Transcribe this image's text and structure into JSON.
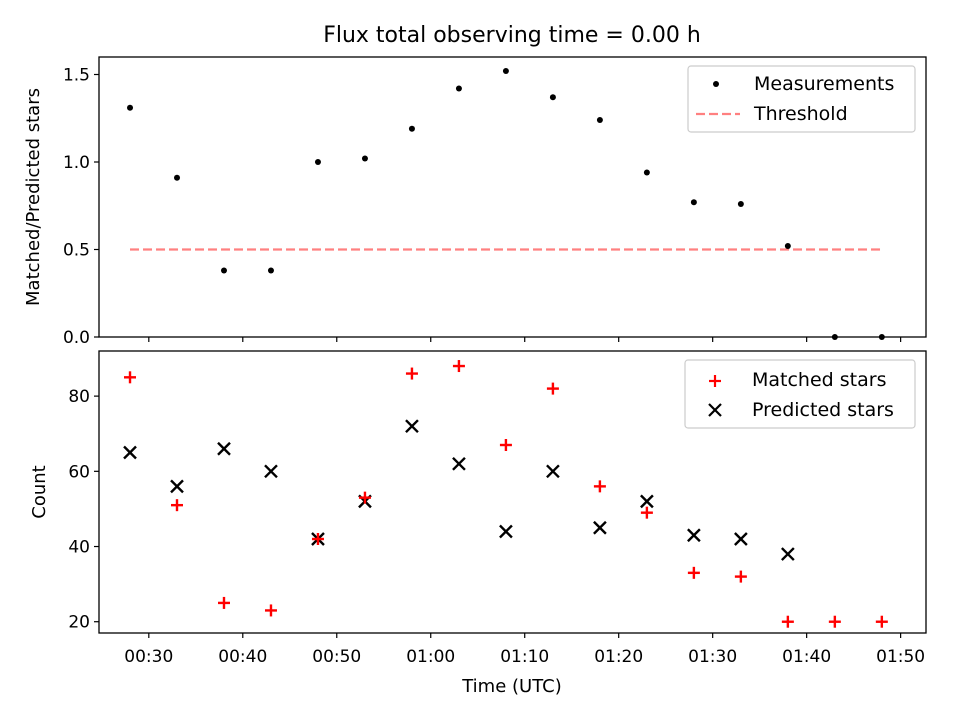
{
  "chart_data": [
    {
      "type": "scatter",
      "title": "Flux total observing time = 0.00 h",
      "xlabel": "",
      "ylabel": "Matched/Predicted stars",
      "ylim": [
        0,
        1.6
      ],
      "yticks": [
        "0.0",
        "0.5",
        "1.0",
        "1.5"
      ],
      "legend_position": "upper right",
      "x": [
        "00:28",
        "00:33",
        "00:38",
        "00:43",
        "00:48",
        "00:53",
        "00:58",
        "01:03",
        "01:08",
        "01:13",
        "01:18",
        "01:23",
        "01:28",
        "01:33",
        "01:38",
        "01:43",
        "01:48"
      ],
      "series": [
        {
          "name": "Measurements",
          "marker": "dot",
          "color": "#000000",
          "values": [
            1.31,
            0.91,
            0.38,
            0.38,
            1.0,
            1.02,
            1.19,
            1.42,
            1.52,
            1.37,
            1.24,
            0.94,
            0.77,
            0.76,
            0.52,
            0.0,
            0.0
          ]
        },
        {
          "name": "Threshold",
          "style": "dashed",
          "color": "#ff8080",
          "values": [
            0.5,
            0.5
          ]
        }
      ]
    },
    {
      "type": "scatter",
      "title": "",
      "xlabel": "Time (UTC)",
      "ylabel": "Count",
      "ylim": [
        17,
        92
      ],
      "yticks": [
        "20",
        "40",
        "60",
        "80"
      ],
      "xticks": [
        "00:30",
        "00:40",
        "00:50",
        "01:00",
        "01:10",
        "01:20",
        "01:30",
        "01:40",
        "01:50"
      ],
      "legend_position": "upper right",
      "x": [
        "00:28",
        "00:33",
        "00:38",
        "00:43",
        "00:48",
        "00:53",
        "00:58",
        "01:03",
        "01:08",
        "01:13",
        "01:18",
        "01:23",
        "01:28",
        "01:33",
        "01:38",
        "01:43",
        "01:48"
      ],
      "series": [
        {
          "name": "Matched stars",
          "marker": "plus",
          "color": "#ff0000",
          "values": [
            85,
            51,
            25,
            23,
            42,
            53,
            86,
            88,
            67,
            82,
            56,
            49,
            33,
            32,
            20,
            20,
            20
          ]
        },
        {
          "name": "Predicted stars",
          "marker": "x",
          "color": "#000000",
          "values": [
            65,
            56,
            66,
            60,
            42,
            52,
            72,
            62,
            44,
            60,
            45,
            52,
            43,
            42,
            38,
            null,
            null
          ]
        }
      ]
    }
  ]
}
